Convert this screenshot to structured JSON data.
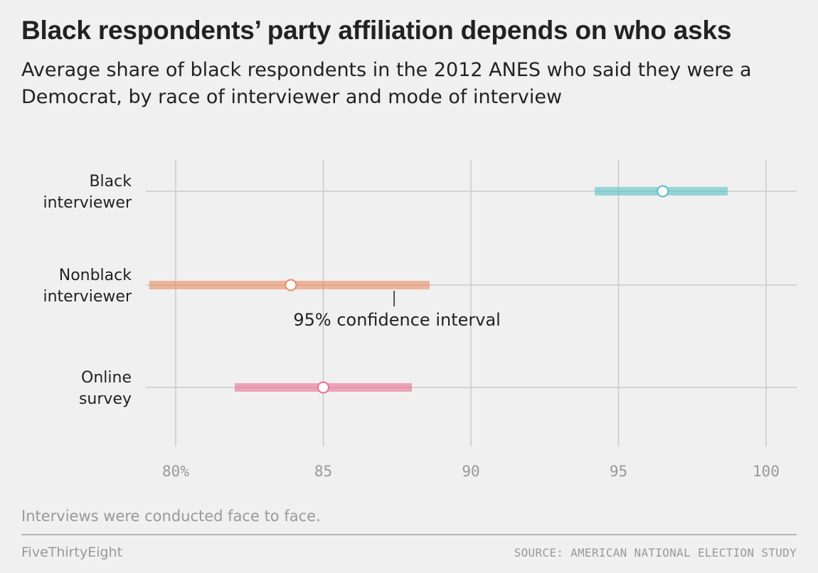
{
  "title": "Black respondents’ party affiliation depends on who asks",
  "subtitle": "Average share of black respondents in the 2012 ANES who said they were a Democrat, by race of interviewer and mode of interview",
  "chart_data": {
    "type": "scatter",
    "xlim": [
      79,
      101
    ],
    "x_ticks": [
      80,
      85,
      90,
      95,
      100
    ],
    "x_tick_labels": [
      "80%",
      "85",
      "90",
      "95",
      "100"
    ],
    "grid": true,
    "series": [
      {
        "name": "Black interviewer",
        "label_lines": [
          "Black",
          "interviewer"
        ],
        "value": 96.5,
        "ci": [
          94.2,
          98.7
        ],
        "color": "#58c1c7"
      },
      {
        "name": "Nonblack interviewer",
        "label_lines": [
          "Nonblack",
          "interviewer"
        ],
        "value": 83.9,
        "ci": [
          79.1,
          88.6
        ],
        "color": "#ea8c60"
      },
      {
        "name": "Online survey",
        "label_lines": [
          "Online",
          "survey"
        ],
        "value": 85.0,
        "ci": [
          82.0,
          88.0
        ],
        "color": "#ea6f95"
      }
    ],
    "annotation": {
      "text": "95% confidence interval",
      "x": 87.4,
      "series_index": 1
    }
  },
  "footnote": "Interviews were conducted face to face.",
  "brand": "FiveThirtyEight",
  "source": "SOURCE: AMERICAN NATIONAL ELECTION STUDY"
}
